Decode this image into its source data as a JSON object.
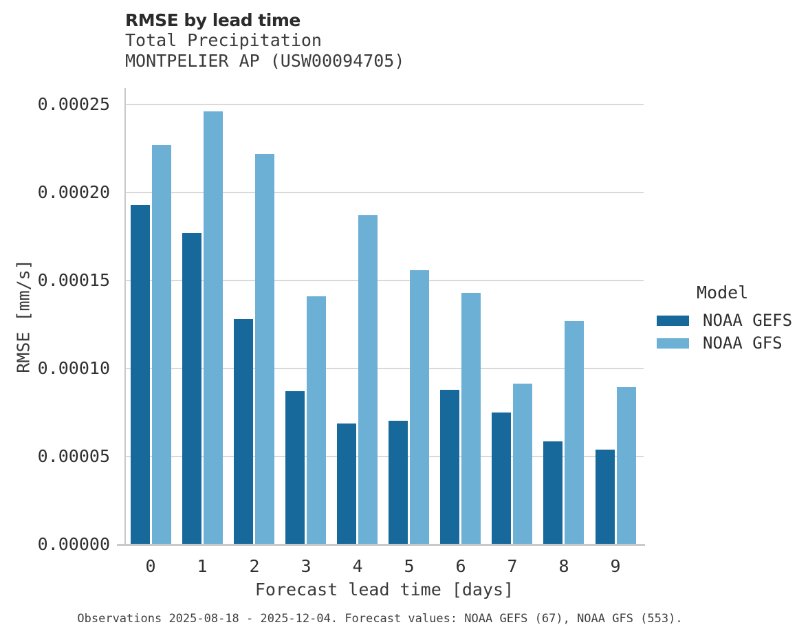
{
  "header": {
    "title": "RMSE by lead time",
    "subtitle_line1": "Total Precipitation",
    "subtitle_line2": "MONTPELIER AP (USW00094705)"
  },
  "legend": {
    "title": "Model",
    "items": [
      {
        "label": "NOAA GEFS",
        "color": "#17699b"
      },
      {
        "label": "NOAA GFS",
        "color": "#6cb0d6"
      }
    ]
  },
  "caption": {
    "text": "Observations 2025-08-18 - 2025-12-04. Forecast values: NOAA GEFS (67), NOAA GFS (553)."
  },
  "colors": {
    "series_dark": "#17699b",
    "series_light": "#6cb0d6",
    "gridline": "#d9d9d9",
    "axis": "#c9c9c9",
    "text_dark": "#2b2b2b",
    "text_gray": "#3b3b3b"
  },
  "chart_data": {
    "type": "bar",
    "title": "RMSE by lead time",
    "subtitle": [
      "Total Precipitation",
      "MONTPELIER AP (USW00094705)"
    ],
    "categories": [
      "0",
      "1",
      "2",
      "3",
      "4",
      "5",
      "6",
      "7",
      "8",
      "9"
    ],
    "series": [
      {
        "name": "NOAA GEFS",
        "color": "#17699b",
        "values": [
          0.000193,
          0.000177,
          0.000128,
          8.71e-05,
          6.89e-05,
          7.05e-05,
          8.79e-05,
          7.51e-05,
          5.85e-05,
          5.38e-05
        ]
      },
      {
        "name": "NOAA GFS",
        "color": "#6cb0d6",
        "values": [
          0.000227,
          0.000246,
          0.000222,
          0.000141,
          0.000187,
          0.000156,
          0.000143,
          9.14e-05,
          0.000127,
          8.94e-05
        ]
      }
    ],
    "xlabel": "Forecast lead time [days]",
    "ylabel": "RMSE [mm/s]",
    "ylim": [
      0,
      0.00026
    ],
    "yticks": [
      0,
      5e-05,
      0.0001,
      0.00015,
      0.0002,
      0.00025
    ],
    "ytick_labels": [
      "0.00000",
      "0.00005",
      "0.00010",
      "0.00015",
      "0.00020",
      "0.00025"
    ],
    "grid": true,
    "legend_title": "Model",
    "legend_position": "right"
  }
}
